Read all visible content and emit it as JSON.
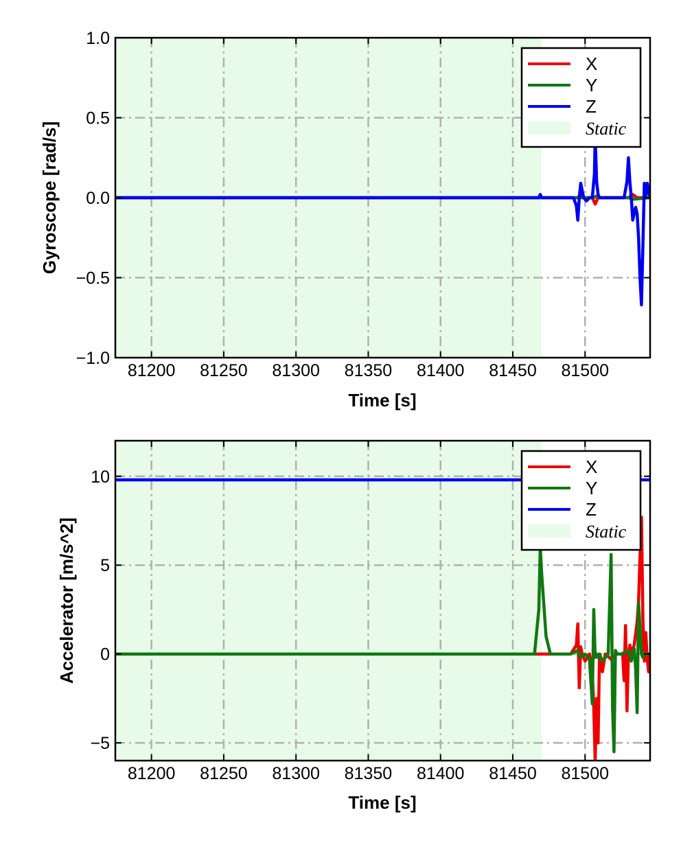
{
  "chart_data": [
    {
      "type": "line",
      "title": "",
      "xlabel": "Time [s]",
      "ylabel": "Gyroscope [rad/s]",
      "xlim": [
        81175,
        81545
      ],
      "ylim": [
        -1.0,
        1.0
      ],
      "xticks": [
        81200,
        81250,
        81300,
        81350,
        81400,
        81450,
        81500
      ],
      "xtick_labels": [
        "81200",
        "81250",
        "81300",
        "81350",
        "81400",
        "81450",
        "81500"
      ],
      "yticks": [
        -1.0,
        -0.5,
        0.0,
        0.5,
        1.0
      ],
      "ytick_labels": [
        "−1.0",
        "−0.5",
        "0.0",
        "0.5",
        "1.0"
      ],
      "grid": true,
      "legend_position": "top-right",
      "static_region": {
        "label": "Static",
        "x0": 81175,
        "x1": 81470,
        "color": "#e8fbe8"
      },
      "series": [
        {
          "name": "X",
          "color": "#ee0000",
          "x": [
            81175,
            81470,
            81495,
            81497,
            81499,
            81505,
            81507,
            81509,
            81520,
            81530,
            81533,
            81536,
            81545
          ],
          "y": [
            0.0,
            0.0,
            0.0,
            0.02,
            0.0,
            0.0,
            -0.04,
            0.0,
            0.0,
            0.0,
            0.02,
            0.0,
            0.0
          ]
        },
        {
          "name": "Y",
          "color": "#117711",
          "x": [
            81175,
            81470,
            81505,
            81508,
            81510,
            81520,
            81530,
            81533,
            81545
          ],
          "y": [
            0.0,
            0.0,
            0.0,
            0.01,
            0.0,
            0.0,
            0.0,
            -0.01,
            0.0
          ]
        },
        {
          "name": "Z",
          "color": "#0000ee",
          "x": [
            81175,
            81468,
            81469,
            81470,
            81492,
            81494,
            81495,
            81496,
            81497,
            81499,
            81501,
            81503,
            81505,
            81506.5,
            81507,
            81507.5,
            81508,
            81509,
            81510,
            81514,
            81525,
            81527,
            81529,
            81530,
            81531,
            81532,
            81533,
            81535,
            81536,
            81537,
            81538,
            81539,
            81540,
            81541,
            81542,
            81543,
            81545
          ],
          "y": [
            0.0,
            0.0,
            0.02,
            0.0,
            0.0,
            -0.05,
            -0.14,
            0.0,
            0.09,
            0.0,
            -0.02,
            0.0,
            0.0,
            0.15,
            0.38,
            0.25,
            0.1,
            0.02,
            0.0,
            0.0,
            0.0,
            0.0,
            0.1,
            0.25,
            0.1,
            0.0,
            -0.14,
            -0.06,
            -0.1,
            -0.25,
            -0.5,
            -0.67,
            -0.3,
            0.09,
            0.0,
            0.09,
            0.0
          ]
        }
      ]
    },
    {
      "type": "line",
      "title": "",
      "xlabel": "Time [s]",
      "ylabel": "Accelerator [m/s^2]",
      "xlim": [
        81175,
        81545
      ],
      "ylim": [
        -6.0,
        12.0
      ],
      "xticks": [
        81200,
        81250,
        81300,
        81350,
        81400,
        81450,
        81500
      ],
      "xtick_labels": [
        "81200",
        "81250",
        "81300",
        "81350",
        "81400",
        "81450",
        "81500"
      ],
      "yticks": [
        -5,
        0,
        5,
        10
      ],
      "ytick_labels": [
        "−5",
        "0",
        "5",
        "10"
      ],
      "grid": true,
      "legend_position": "top-right",
      "static_region": {
        "label": "Static",
        "x0": 81175,
        "x1": 81470,
        "color": "#e8fbe8"
      },
      "series": [
        {
          "name": "X",
          "color": "#ee0000",
          "x": [
            81175,
            81470,
            81490,
            81494,
            81495,
            81496,
            81497,
            81498,
            81500,
            81503,
            81505,
            81506,
            81507,
            81508,
            81509,
            81510,
            81512,
            81514,
            81518,
            81522,
            81526,
            81527,
            81528,
            81529,
            81530,
            81531,
            81532,
            81534,
            81536,
            81537,
            81538,
            81539,
            81540,
            81541,
            81542,
            81543,
            81544,
            81545
          ],
          "y": [
            0.0,
            0.0,
            0.0,
            0.5,
            1.7,
            -1.9,
            0.4,
            0.0,
            -0.4,
            0.0,
            -1.0,
            -3.0,
            -6.0,
            -2.5,
            -5.0,
            0.0,
            -1.0,
            0.0,
            -0.3,
            0.0,
            0.0,
            -1.5,
            1.6,
            -3.2,
            0.0,
            0.5,
            0.0,
            0.5,
            1.8,
            3.0,
            5.5,
            7.7,
            2.0,
            -0.4,
            1.2,
            -0.3,
            -1.0,
            0.0
          ]
        },
        {
          "name": "Y",
          "color": "#117711",
          "x": [
            81175,
            81465,
            81468,
            81469,
            81470,
            81473,
            81476,
            81490,
            81495,
            81497,
            81500,
            81503,
            81505,
            81506,
            81507,
            81508,
            81509,
            81510,
            81512,
            81516,
            81518,
            81519,
            81520,
            81521,
            81522,
            81525,
            81530,
            81532,
            81534,
            81535,
            81536,
            81537,
            81538,
            81539,
            81540,
            81541,
            81543,
            81545
          ],
          "y": [
            0.0,
            0.0,
            2.5,
            6.0,
            4.5,
            1.0,
            0.0,
            0.0,
            0.2,
            -0.2,
            0.0,
            -0.3,
            -2.8,
            2.5,
            -0.2,
            0.0,
            -0.2,
            0.0,
            -0.4,
            0.0,
            5.6,
            -3.0,
            -5.5,
            0.2,
            0.0,
            0.0,
            0.2,
            -0.4,
            0.3,
            -0.8,
            -3.3,
            2.9,
            1.5,
            0.0,
            -0.2,
            0.0,
            0.0,
            0.0
          ]
        },
        {
          "name": "Z",
          "color": "#0000ee",
          "x": [
            81175,
            81545
          ],
          "y": [
            9.8,
            9.8
          ]
        }
      ]
    }
  ]
}
